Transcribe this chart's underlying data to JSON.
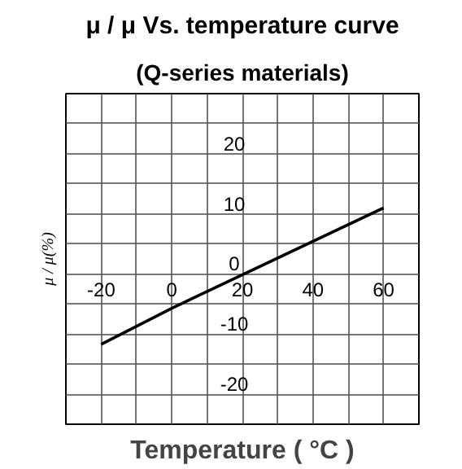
{
  "chart_data": {
    "type": "line",
    "title": "μ / μ Vs. temperature curve",
    "subtitle": "(Q-series materials)",
    "xlabel": "Temperature ( °C )",
    "ylabel": "μ / μ(%)",
    "x": [
      -20,
      0,
      60
    ],
    "series": [
      {
        "color": "#000000",
        "values": [
          -11.7,
          -5.7,
          11
        ]
      }
    ],
    "xlim": [
      -30,
      70
    ],
    "ylim": [
      -25,
      30
    ],
    "xticks": [
      -20,
      {
        "value": -10,
        "label": null
      },
      0,
      {
        "value": 10,
        "label": null
      },
      20,
      {
        "value": 30,
        "label": null
      },
      40,
      {
        "value": 50,
        "label": null
      },
      60
    ],
    "yticks": [
      -20,
      {
        "value": -15,
        "label": null
      },
      -10,
      {
        "value": -5,
        "label": null
      },
      0,
      {
        "value": 5,
        "label": null
      },
      10,
      {
        "value": 15,
        "label": null
      },
      20,
      {
        "value": 25,
        "label": null
      }
    ],
    "grid": true,
    "marker": "none",
    "line_style": "solid"
  }
}
